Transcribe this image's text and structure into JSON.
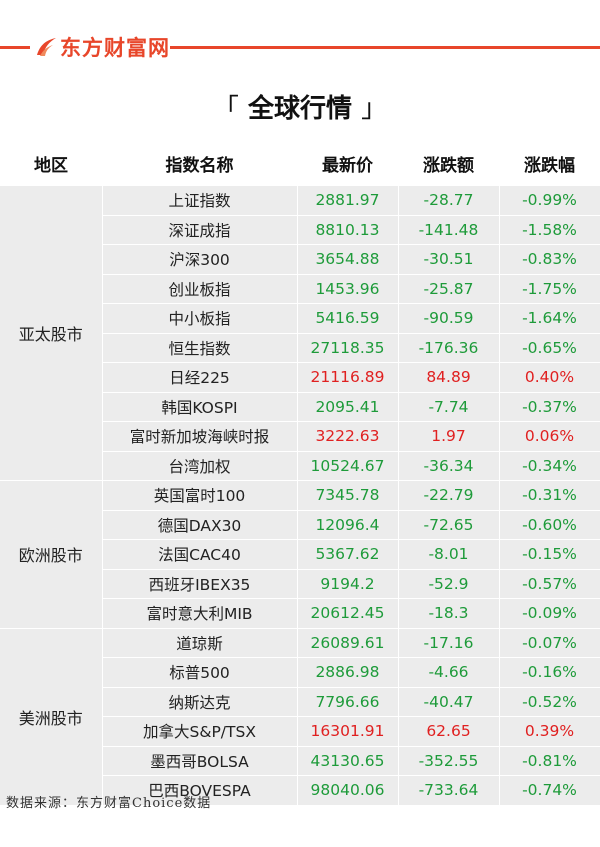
{
  "brand": "东方财富网",
  "title": "全球行情",
  "headers": [
    "地区",
    "指数名称",
    "最新价",
    "涨跌额",
    "涨跌幅"
  ],
  "colors": {
    "up": "#e02020",
    "down": "#1e9b3a",
    "accent": "#e8462a",
    "row_bg": "#ececec"
  },
  "groups": [
    {
      "region": "亚太股市",
      "rows": [
        {
          "name": "上证指数",
          "price": "2881.97",
          "change": "-28.77",
          "pct": "-0.99%",
          "dir": "down"
        },
        {
          "name": "深证成指",
          "price": "8810.13",
          "change": "-141.48",
          "pct": "-1.58%",
          "dir": "down"
        },
        {
          "name": "沪深300",
          "price": "3654.88",
          "change": "-30.51",
          "pct": "-0.83%",
          "dir": "down"
        },
        {
          "name": "创业板指",
          "price": "1453.96",
          "change": "-25.87",
          "pct": "-1.75%",
          "dir": "down"
        },
        {
          "name": "中小板指",
          "price": "5416.59",
          "change": "-90.59",
          "pct": "-1.64%",
          "dir": "down"
        },
        {
          "name": "恒生指数",
          "price": "27118.35",
          "change": "-176.36",
          "pct": "-0.65%",
          "dir": "down"
        },
        {
          "name": "日经225",
          "price": "21116.89",
          "change": "84.89",
          "pct": "0.40%",
          "dir": "up"
        },
        {
          "name": "韩国KOSPI",
          "price": "2095.41",
          "change": "-7.74",
          "pct": "-0.37%",
          "dir": "down"
        },
        {
          "name": "富时新加坡海峡时报",
          "price": "3222.63",
          "change": "1.97",
          "pct": "0.06%",
          "dir": "up"
        },
        {
          "name": "台湾加权",
          "price": "10524.67",
          "change": "-36.34",
          "pct": "-0.34%",
          "dir": "down"
        }
      ]
    },
    {
      "region": "欧洲股市",
      "rows": [
        {
          "name": "英国富时100",
          "price": "7345.78",
          "change": "-22.79",
          "pct": "-0.31%",
          "dir": "down"
        },
        {
          "name": "德国DAX30",
          "price": "12096.4",
          "change": "-72.65",
          "pct": "-0.60%",
          "dir": "down"
        },
        {
          "name": "法国CAC40",
          "price": "5367.62",
          "change": "-8.01",
          "pct": "-0.15%",
          "dir": "down"
        },
        {
          "name": "西班牙IBEX35",
          "price": "9194.2",
          "change": "-52.9",
          "pct": "-0.57%",
          "dir": "down"
        },
        {
          "name": "富时意大利MIB",
          "price": "20612.45",
          "change": "-18.3",
          "pct": "-0.09%",
          "dir": "down"
        }
      ]
    },
    {
      "region": "美洲股市",
      "rows": [
        {
          "name": "道琼斯",
          "price": "26089.61",
          "change": "-17.16",
          "pct": "-0.07%",
          "dir": "down"
        },
        {
          "name": "标普500",
          "price": "2886.98",
          "change": "-4.66",
          "pct": "-0.16%",
          "dir": "down"
        },
        {
          "name": "纳斯达克",
          "price": "7796.66",
          "change": "-40.47",
          "pct": "-0.52%",
          "dir": "down"
        },
        {
          "name": "加拿大S&P/TSX",
          "price": "16301.91",
          "change": "62.65",
          "pct": "0.39%",
          "dir": "up"
        },
        {
          "name": "墨西哥BOLSA",
          "price": "43130.65",
          "change": "-352.55",
          "pct": "-0.81%",
          "dir": "down"
        },
        {
          "name": "巴西BOVESPA",
          "price": "98040.06",
          "change": "-733.64",
          "pct": "-0.74%",
          "dir": "down"
        }
      ]
    }
  ],
  "footer": "数据来源：东方财富Choice数据"
}
